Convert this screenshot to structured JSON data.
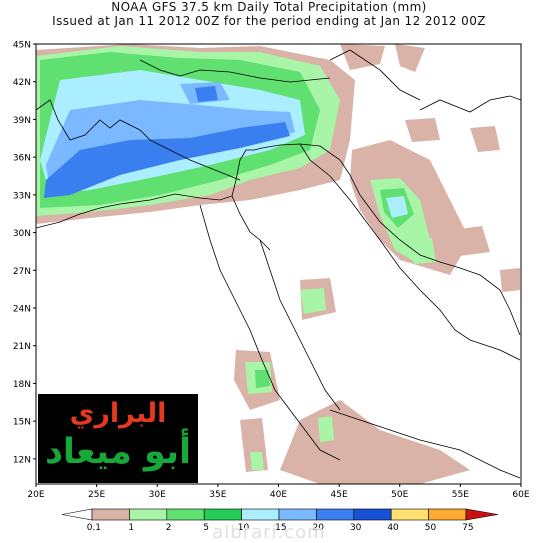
{
  "title_line1": "NOAA GFS 37.5 km Daily Total Precipitation (mm)",
  "title_line2": "Issued at Jan 11 2012 00Z for the period ending at Jan 12 2012 00Z",
  "lat_labels": [
    "45N",
    "42N",
    "39N",
    "36N",
    "33N",
    "30N",
    "27N",
    "24N",
    "21N",
    "18N",
    "15N",
    "12N"
  ],
  "lat_values": [
    45,
    42,
    39,
    36,
    33,
    30,
    27,
    24,
    21,
    18,
    15,
    12
  ],
  "lon_labels": [
    "20E",
    "25E",
    "30E",
    "35E",
    "40E",
    "45E",
    "50E",
    "55E",
    "60E"
  ],
  "lon_values": [
    20,
    25,
    30,
    35,
    40,
    45,
    50,
    55,
    60
  ],
  "extent": {
    "lon_min": 20,
    "lon_max": 60,
    "lat_min": 10,
    "lat_max": 45
  },
  "legend": {
    "labels": [
      "0.1",
      "1",
      "2",
      "5",
      "10",
      "15",
      "20",
      "30",
      "40",
      "50",
      "75"
    ],
    "colors": [
      "#d9b3a8",
      "#a8f5a8",
      "#5fe070",
      "#22cc55",
      "#aaeeff",
      "#7ab8ff",
      "#3a7ff0",
      "#1850d8",
      "#ffe070",
      "#ffaa30",
      "#ff6020",
      "#cc1010"
    ]
  },
  "logo": {
    "line1": "البراري",
    "line2": "أبو ميعاد"
  },
  "watermark": "albrari.com",
  "colors": {
    "land_line": "#000000",
    "axis": "#000000"
  }
}
